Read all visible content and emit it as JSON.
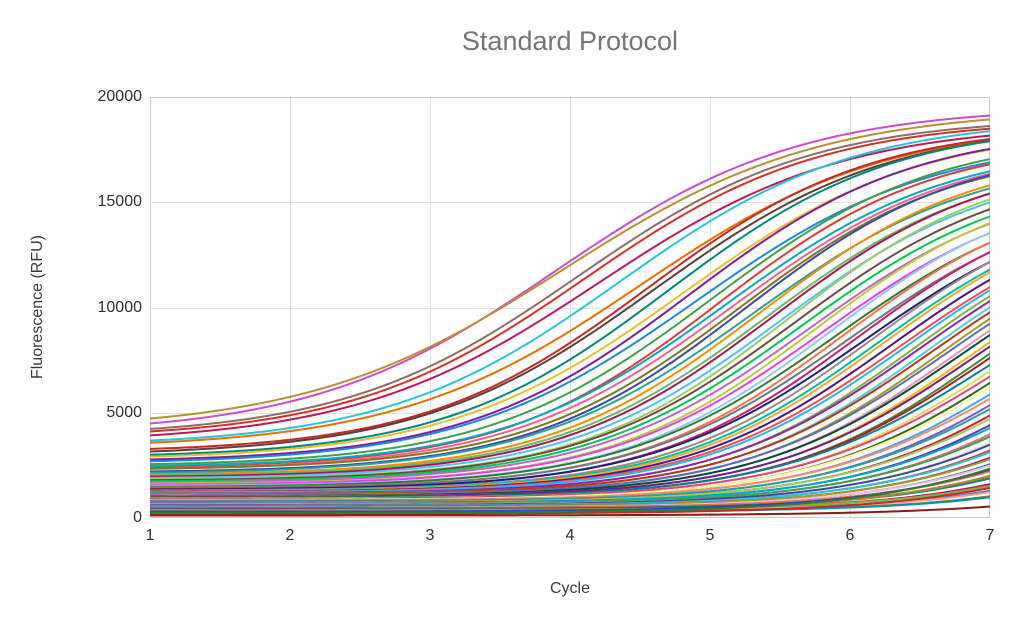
{
  "chart_data": {
    "type": "line",
    "title": "Standard Protocol",
    "xlabel": "Cycle",
    "ylabel": "Fluorescence (RFU)",
    "xlim": [
      1,
      7
    ],
    "ylim": [
      0,
      20000
    ],
    "xticks": [
      1,
      2,
      3,
      4,
      5,
      6,
      7
    ],
    "yticks": [
      0,
      5000,
      10000,
      15000,
      20000
    ],
    "grid": true,
    "legend": false,
    "title_color": "#757575",
    "grid_color": "#e2e2e2",
    "border_color": "#cccccc",
    "curve_model": "logistic: y(x) = y0 + L / (1 + exp(-k*(x - x0)))",
    "series_format": [
      "color",
      "y0",
      "L",
      "x0",
      "k"
    ],
    "series": [
      [
        "#cf4bc9",
        3950,
        15600,
        3.9,
        1.15
      ],
      [
        "#b8912e",
        4150,
        15300,
        3.95,
        1.1
      ],
      [
        "#8d6e63",
        3850,
        15200,
        4.05,
        1.2
      ],
      [
        "#d93025",
        3750,
        15200,
        4.1,
        1.2
      ],
      [
        "#c2185b",
        3550,
        15200,
        4.2,
        1.15
      ],
      [
        "#26c6da",
        3400,
        15600,
        4.35,
        1.2
      ],
      [
        "#ef6c00",
        3300,
        15500,
        4.5,
        1.15
      ],
      [
        "#c62828",
        3100,
        15600,
        4.55,
        1.25
      ],
      [
        "#5d4037",
        2950,
        15800,
        4.6,
        1.2
      ],
      [
        "#00897b",
        2850,
        15900,
        4.7,
        1.25
      ],
      [
        "#e6c229",
        2750,
        15800,
        4.8,
        1.2
      ],
      [
        "#7b1fa2",
        2650,
        15900,
        4.85,
        1.25
      ],
      [
        "#1e88e5",
        2550,
        15500,
        4.9,
        1.2
      ],
      [
        "#43a047",
        2450,
        15800,
        5.0,
        1.25
      ],
      [
        "#e53935",
        2350,
        15600,
        5.05,
        1.3
      ],
      [
        "#00acc1",
        2380,
        15400,
        5.1,
        1.25
      ],
      [
        "#f06292",
        2250,
        15500,
        5.15,
        1.25
      ],
      [
        "#827717",
        2280,
        15300,
        5.2,
        1.3
      ],
      [
        "#3949ab",
        2150,
        15600,
        5.25,
        1.3
      ],
      [
        "#26a69a",
        2080,
        15200,
        5.3,
        1.25
      ],
      [
        "#fb8c00",
        2020,
        15400,
        5.35,
        1.3
      ],
      [
        "#66bb6a",
        1980,
        15100,
        5.4,
        1.3
      ],
      [
        "#ad1457",
        1920,
        15300,
        5.45,
        1.3
      ],
      [
        "#4fc3f7",
        1860,
        15000,
        5.5,
        1.3
      ],
      [
        "#9ccc65",
        1820,
        15200,
        5.55,
        1.35
      ],
      [
        "#6d4c41",
        1760,
        15000,
        5.6,
        1.3
      ],
      [
        "#00c853",
        1710,
        14800,
        5.65,
        1.3
      ],
      [
        "#ba68c8",
        1660,
        14600,
        5.7,
        1.3
      ],
      [
        "#c0ca33",
        1610,
        14700,
        5.75,
        1.35
      ],
      [
        "#e040fb",
        1560,
        14500,
        5.8,
        1.3
      ],
      [
        "#90caf9",
        1510,
        14600,
        5.85,
        1.35
      ],
      [
        "#2e7d32",
        1460,
        14400,
        5.9,
        1.3
      ],
      [
        "#ff7043",
        1420,
        14500,
        5.95,
        1.35
      ],
      [
        "#607d8b",
        1390,
        14300,
        6.0,
        1.3
      ],
      [
        "#d81b60",
        1360,
        14400,
        6.05,
        1.35
      ],
      [
        "#1a237e",
        1330,
        14200,
        6.1,
        1.3
      ],
      [
        "#a1887f",
        1300,
        14300,
        6.15,
        1.35
      ],
      [
        "#00bfa5",
        1280,
        14100,
        6.2,
        1.35
      ],
      [
        "#f9a825",
        1260,
        14200,
        6.25,
        1.35
      ],
      [
        "#4a148c",
        1240,
        14000,
        6.3,
        1.35
      ],
      [
        "#ef5350",
        1220,
        13800,
        6.35,
        1.35
      ],
      [
        "#29b6f6",
        1200,
        13900,
        6.4,
        1.35
      ],
      [
        "#7cb342",
        1180,
        13700,
        6.45,
        1.4
      ],
      [
        "#8e24aa",
        1160,
        13800,
        6.5,
        1.35
      ],
      [
        "#4dd0e1",
        1140,
        13600,
        6.55,
        1.4
      ],
      [
        "#bf360c",
        1120,
        13700,
        6.6,
        1.35
      ],
      [
        "#9e9d24",
        1100,
        13500,
        6.65,
        1.4
      ],
      [
        "#5c6bc0",
        1080,
        13600,
        6.7,
        1.35
      ],
      [
        "#f48fb1",
        1060,
        13400,
        6.75,
        1.4
      ],
      [
        "#004d40",
        1040,
        13500,
        6.8,
        1.35
      ],
      [
        "#ffb300",
        1020,
        13300,
        6.85,
        1.4
      ],
      [
        "#6a1b9a",
        1000,
        13400,
        6.9,
        1.35
      ],
      [
        "#388e3c",
        980,
        13200,
        6.95,
        1.4
      ],
      [
        "#b71c1c",
        960,
        13300,
        7.0,
        1.35
      ],
      [
        "#00838f",
        940,
        13100,
        7.05,
        1.3
      ],
      [
        "#d4e157",
        920,
        13000,
        7.1,
        1.35
      ],
      [
        "#ec407a",
        900,
        12900,
        7.15,
        1.3
      ],
      [
        "#33691e",
        880,
        12800,
        7.2,
        1.35
      ],
      [
        "#fff59d",
        860,
        12700,
        7.25,
        1.3
      ],
      [
        "#42a5f5",
        840,
        12600,
        7.3,
        1.35
      ],
      [
        "#ff8a65",
        820,
        12500,
        7.35,
        1.3
      ],
      [
        "#7e57c2",
        800,
        12400,
        7.4,
        1.35
      ],
      [
        "#26a69a",
        780,
        12300,
        7.45,
        1.3
      ],
      [
        "#c62828",
        760,
        12200,
        7.5,
        1.35
      ],
      [
        "#9ccc65",
        740,
        12100,
        7.55,
        1.3
      ],
      [
        "#5e35b1",
        720,
        12000,
        7.6,
        1.35
      ],
      [
        "#00acc1",
        700,
        11900,
        7.65,
        1.3
      ],
      [
        "#f06292",
        680,
        11800,
        7.7,
        1.35
      ],
      [
        "#43a047",
        660,
        11700,
        7.75,
        1.3
      ],
      [
        "#e9dfc3",
        640,
        11600,
        7.8,
        1.35
      ],
      [
        "#3949ab",
        620,
        11500,
        7.85,
        1.3
      ],
      [
        "#e53935",
        600,
        11400,
        7.9,
        1.35
      ],
      [
        "#26c6da",
        580,
        11300,
        7.95,
        1.3
      ],
      [
        "#8e24aa",
        560,
        11200,
        8.0,
        1.35
      ],
      [
        "#9e9d24",
        540,
        11100,
        8.05,
        1.3
      ],
      [
        "#1565c0",
        520,
        11000,
        8.1,
        1.35
      ],
      [
        "#f8bbd0",
        500,
        10900,
        8.15,
        1.3
      ],
      [
        "#2e7d32",
        480,
        10800,
        8.2,
        1.35
      ],
      [
        "#ff7043",
        460,
        10700,
        8.25,
        1.3
      ],
      [
        "#6d4c41",
        440,
        10600,
        8.3,
        1.35
      ],
      [
        "#00897b",
        420,
        10500,
        8.4,
        1.3
      ],
      [
        "#c2185b",
        400,
        10400,
        8.5,
        1.35
      ],
      [
        "#7cb342",
        380,
        10300,
        8.6,
        1.3
      ],
      [
        "#5c6bc0",
        360,
        10200,
        8.7,
        1.35
      ],
      [
        "#ef9a9a",
        340,
        10100,
        8.8,
        1.3
      ],
      [
        "#827717",
        320,
        10000,
        8.9,
        1.35
      ],
      [
        "#0097a7",
        300,
        9900,
        9.0,
        1.3
      ],
      [
        "#b8862b",
        280,
        9800,
        8.3,
        1.2
      ],
      [
        "#2743c7",
        300,
        9900,
        8.1,
        1.25
      ],
      [
        "#c62828",
        200,
        9600,
        8.6,
        1.2
      ],
      [
        "#8b1a10",
        120,
        9000,
        9.5,
        1.2
      ],
      [
        "#2e7d32",
        250,
        9800,
        8.0,
        1.3
      ]
    ]
  }
}
